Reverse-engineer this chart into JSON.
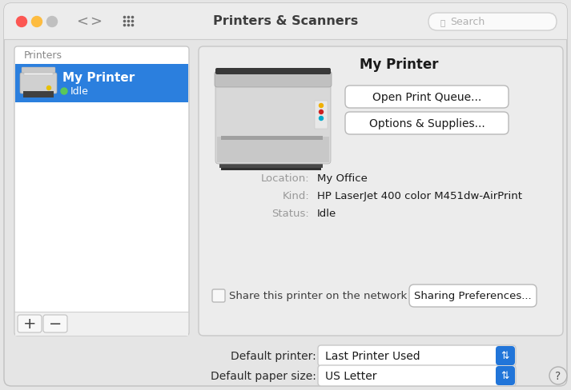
{
  "bg_color": "#e5e5e5",
  "titlebar_color": "#ececec",
  "window_outline": "#c0c0c0",
  "title": "Printers & Scanners",
  "title_fontsize": 11.5,
  "search_placeholder": "Search",
  "dot_colors": [
    "#fc5753",
    "#fdbc40",
    "#c0c0c0"
  ],
  "left_panel_bg": "#ffffff",
  "left_panel_border": "#c8c8c8",
  "left_panel_label": "Printers",
  "printer_name": "My Printer",
  "printer_status": "Idle",
  "idle_dot_color": "#5ac85a",
  "selected_bg": "#2b7fde",
  "selected_text": "#ffffff",
  "right_panel_bg": "#ececec",
  "right_panel_border": "#c8c8c8",
  "detail_title": "My Printer",
  "btn1_label": "Open Print Queue...",
  "btn2_label": "Options & Supplies...",
  "location_label": "Location:",
  "location_value": "My Office",
  "kind_label": "Kind:",
  "kind_value": "HP LaserJet 400 color M451dw-AirPrint",
  "status_label": "Status:",
  "status_value": "Idle",
  "share_label": "Share this printer on the network",
  "sharing_btn": "Sharing Preferences...",
  "default_printer_label": "Default printer:",
  "default_printer_value": "Last Printer Used",
  "default_paper_label": "Default paper size:",
  "default_paper_value": "US Letter",
  "btn_bg": "#ffffff",
  "btn_border": "#c0c0c0",
  "dropdown_bg": "#ffffff",
  "dropdown_arrow_color": "#2175d9",
  "help_btn_border": "#aaaaaa",
  "bottom_bar_bg": "#f0f0f0",
  "label_color": "#999999",
  "value_color": "#1a1a1a",
  "info_label_color": "#999999"
}
